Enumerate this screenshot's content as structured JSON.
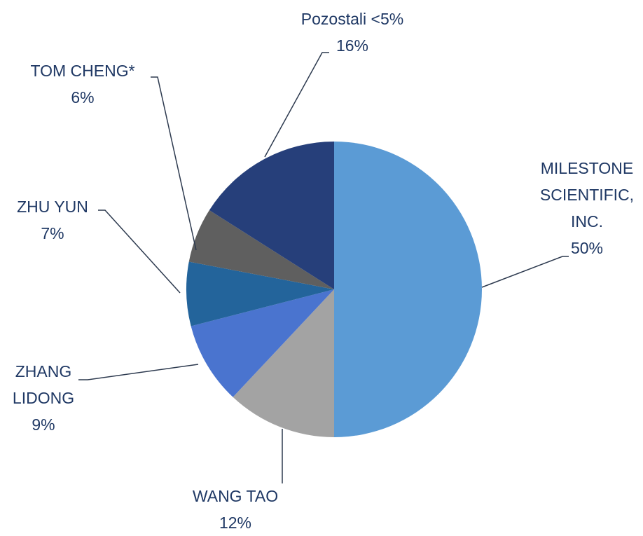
{
  "chart_data": {
    "type": "pie",
    "categories": [
      "MILESTONE SCIENTIFIC, INC.",
      "WANG TAO",
      "ZHANG LIDONG",
      "ZHU YUN",
      "TOM CHENG*",
      "Pozostali <5%"
    ],
    "values": [
      50,
      12,
      9,
      7,
      6,
      16
    ],
    "value_labels": [
      "50%",
      "12%",
      "9%",
      "7%",
      "6%",
      "16%"
    ],
    "colors": [
      "#5b9bd5",
      "#a3a3a3",
      "#4a74cf",
      "#23649b",
      "#5f5f5f",
      "#263f7a"
    ]
  }
}
